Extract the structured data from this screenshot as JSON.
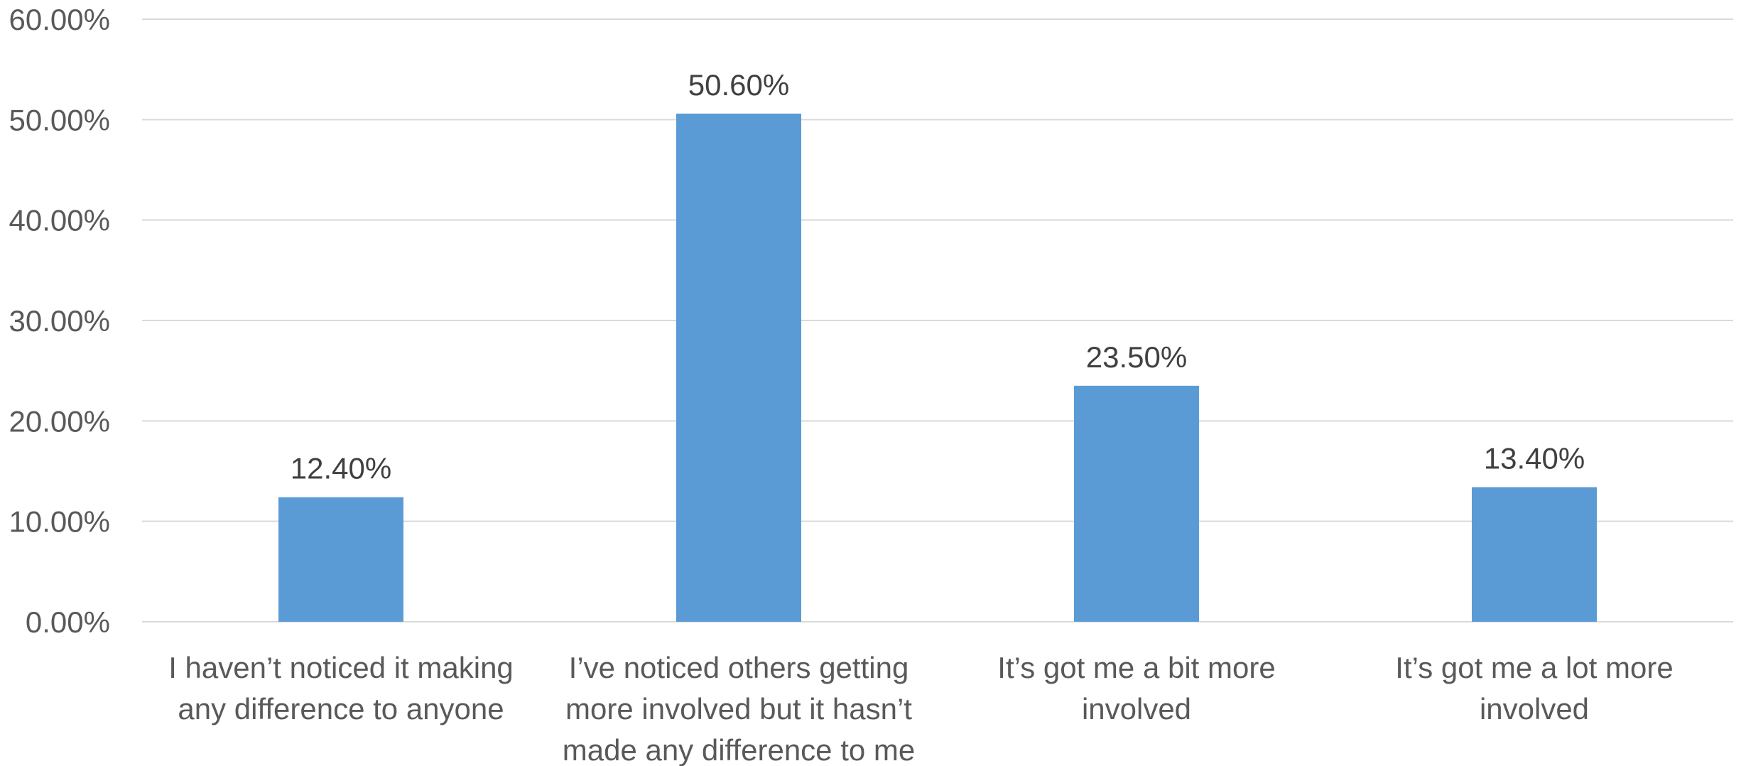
{
  "chart_data": {
    "type": "bar",
    "categories": [
      [
        "I haven’t noticed it making",
        "any difference to anyone"
      ],
      [
        "I’ve noticed others getting",
        "more involved but it hasn’t",
        "made any difference to me"
      ],
      [
        "It’s got me a bit more",
        "involved"
      ],
      [
        "It’s got me a lot more",
        "involved"
      ]
    ],
    "values": [
      12.4,
      50.6,
      23.5,
      13.4
    ],
    "data_labels": [
      "12.40%",
      "50.60%",
      "23.50%",
      "13.40%"
    ],
    "ylim": [
      0,
      60
    ],
    "ytick_values": [
      0,
      10,
      20,
      30,
      40,
      50,
      60
    ],
    "ytick_labels": [
      "0.00%",
      "10.00%",
      "20.00%",
      "30.00%",
      "40.00%",
      "50.00%",
      "60.00%"
    ],
    "title": "",
    "xlabel": "",
    "ylabel": "",
    "grid": true,
    "legend": "none",
    "colors": {
      "bar": "#5b9bd5",
      "grid": "#d9d9d9"
    }
  }
}
